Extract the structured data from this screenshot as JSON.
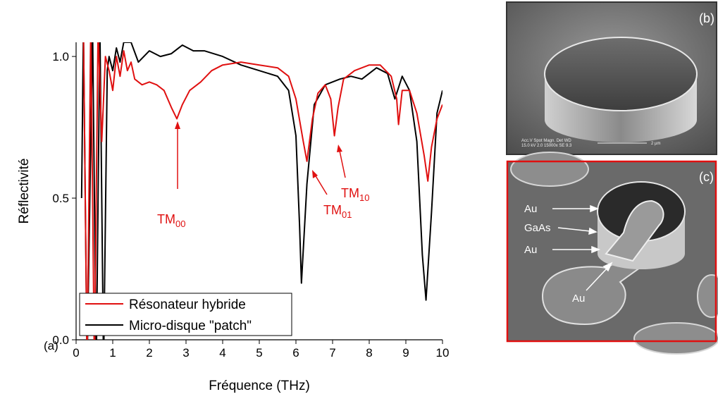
{
  "chart_data": {
    "type": "line",
    "panel_label": "(a)",
    "xlabel": "Fréquence (THz)",
    "ylabel": "Réflectivité",
    "xlim": [
      0,
      10
    ],
    "ylim": [
      0,
      1.05
    ],
    "xticks": [
      0,
      1,
      2,
      3,
      4,
      5,
      6,
      7,
      8,
      9,
      10
    ],
    "yticks": [
      {
        "value": 0,
        "label": "0.0"
      },
      0.5,
      {
        "value": 1,
        "label": "1.0"
      }
    ],
    "legend": "lower left",
    "series": [
      {
        "name": "Résonateur hybride",
        "color": "#e01010",
        "x": [
          0.2,
          0.3,
          0.4,
          0.5,
          0.6,
          0.7,
          0.8,
          0.9,
          1.0,
          1.1,
          1.2,
          1.3,
          1.4,
          1.5,
          1.6,
          1.8,
          2.0,
          2.2,
          2.4,
          2.6,
          2.75,
          2.9,
          3.1,
          3.4,
          3.7,
          4.0,
          4.5,
          5.0,
          5.5,
          5.8,
          6.0,
          6.2,
          6.3,
          6.45,
          6.6,
          6.8,
          6.95,
          7.05,
          7.15,
          7.3,
          7.6,
          8.0,
          8.3,
          8.6,
          8.75,
          8.8,
          8.9,
          9.1,
          9.3,
          9.5,
          9.6,
          9.7,
          9.85,
          10.0
        ],
        "values": [
          1.1,
          -0.1,
          1.1,
          -0.1,
          1.1,
          0.7,
          1.0,
          0.95,
          0.88,
          1.0,
          0.93,
          1.02,
          0.95,
          0.98,
          0.92,
          0.9,
          0.91,
          0.9,
          0.88,
          0.82,
          0.78,
          0.83,
          0.88,
          0.91,
          0.95,
          0.97,
          0.98,
          0.97,
          0.96,
          0.93,
          0.85,
          0.7,
          0.63,
          0.78,
          0.87,
          0.9,
          0.85,
          0.72,
          0.82,
          0.92,
          0.95,
          0.97,
          0.97,
          0.93,
          0.85,
          0.76,
          0.88,
          0.88,
          0.8,
          0.65,
          0.56,
          0.68,
          0.78,
          0.83
        ]
      },
      {
        "name": "Micro-disque \"patch\"",
        "color": "#000000",
        "x": [
          0.15,
          0.2,
          0.3,
          0.45,
          0.55,
          0.65,
          0.75,
          0.85,
          0.9,
          1.0,
          1.1,
          1.2,
          1.3,
          1.5,
          1.7,
          2.0,
          2.3,
          2.6,
          2.9,
          3.2,
          3.5,
          4.0,
          4.5,
          5.0,
          5.5,
          5.8,
          6.0,
          6.1,
          6.15,
          6.3,
          6.5,
          6.8,
          7.2,
          7.5,
          7.8,
          8.2,
          8.5,
          8.7,
          8.75,
          8.9,
          9.1,
          9.3,
          9.45,
          9.55,
          9.7,
          9.85,
          10.0
        ],
        "values": [
          0.5,
          1.1,
          -0.1,
          1.1,
          -0.1,
          1.1,
          -0.1,
          0.95,
          1.0,
          0.95,
          1.03,
          0.98,
          1.05,
          1.05,
          0.98,
          1.02,
          1.0,
          1.01,
          1.04,
          1.02,
          1.02,
          1.0,
          0.97,
          0.95,
          0.93,
          0.88,
          0.72,
          0.4,
          0.2,
          0.55,
          0.83,
          0.9,
          0.92,
          0.93,
          0.92,
          0.96,
          0.94,
          0.85,
          0.87,
          0.93,
          0.88,
          0.7,
          0.3,
          0.14,
          0.45,
          0.8,
          0.88
        ]
      }
    ],
    "annotations": [
      {
        "text": "TM",
        "sub": "00"
      },
      {
        "text": "TM",
        "sub": "01"
      },
      {
        "text": "TM",
        "sub": "10"
      }
    ]
  },
  "images": [
    {
      "label": "(b)",
      "caption_line1": "Acc.V  Spot Magn.   Det  WD",
      "caption_line2": "15.0 kV 2.0  15000x  SE  9.3",
      "scale": "2 µm"
    },
    {
      "label": "(c)",
      "labels": [
        "Au",
        "GaAs",
        "Au",
        "Au"
      ]
    }
  ]
}
